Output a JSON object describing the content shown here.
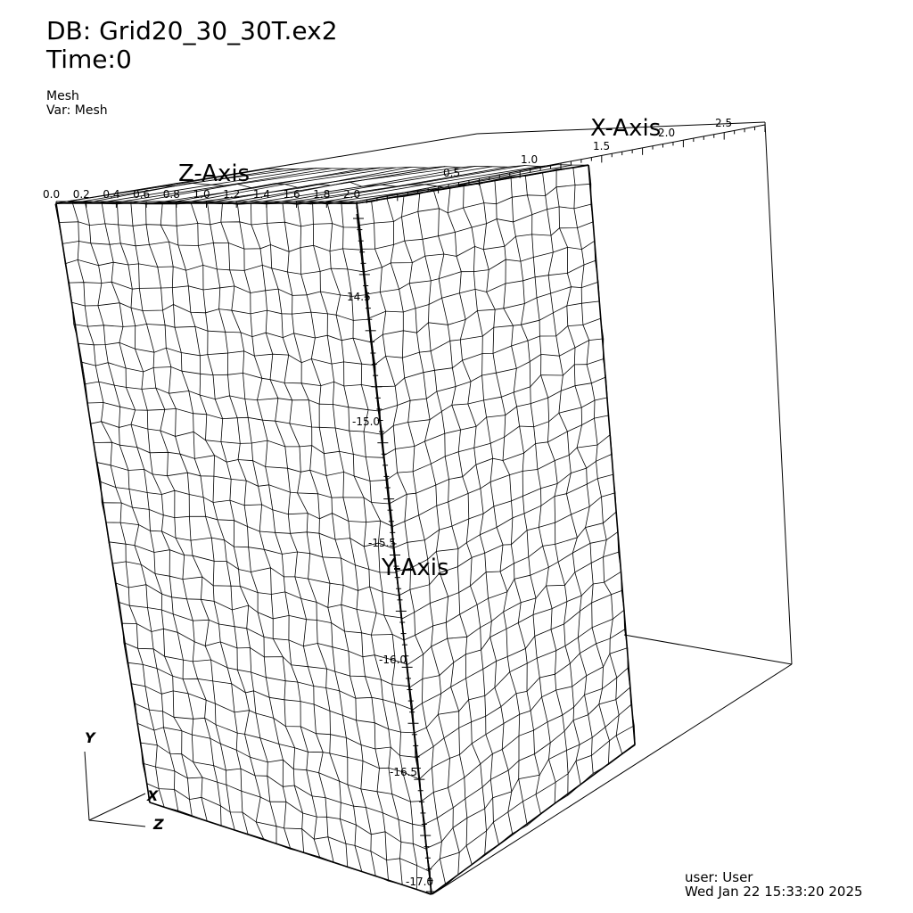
{
  "header": {
    "database": "DB: Grid20_30_30T.ex2",
    "time": "Time:0"
  },
  "plot": {
    "name": "Mesh",
    "variable": "Var: Mesh"
  },
  "axes": {
    "x": {
      "title": "X-Axis",
      "ticks": [
        "0.5",
        "1.0",
        "1.5",
        "2.0",
        "2.5"
      ]
    },
    "y": {
      "title": "Y-Axis",
      "ticks": [
        "14.5",
        "-15.0",
        "-15.5",
        "-16.0",
        "-16.5",
        "-17.0"
      ]
    },
    "z": {
      "title": "Z-Axis",
      "ticks": [
        "0.0",
        "0.2",
        "0.4",
        "0.6",
        "0.8",
        "1.0",
        "1.2",
        "1.4",
        "1.6",
        "1.8",
        "2.0"
      ]
    }
  },
  "triad": {
    "y": "Y",
    "x": "X",
    "z": "Z"
  },
  "footer": {
    "user": "user: User",
    "date": "Wed Jan 22 15:33:20 2025"
  },
  "colors": {
    "background": "#ffffff",
    "lines": "#000000"
  }
}
